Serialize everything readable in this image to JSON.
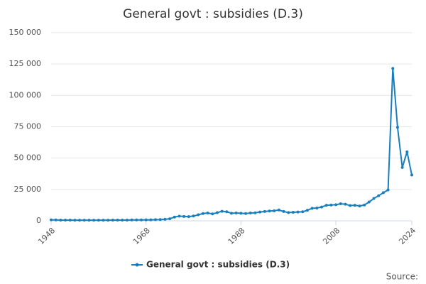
{
  "chart_data": {
    "type": "line",
    "title": "General govt : subsidies (D.3)",
    "source": "Source:",
    "x": [
      1948,
      1949,
      1950,
      1951,
      1952,
      1953,
      1954,
      1955,
      1956,
      1957,
      1958,
      1959,
      1960,
      1961,
      1962,
      1963,
      1964,
      1965,
      1966,
      1967,
      1968,
      1969,
      1970,
      1971,
      1972,
      1973,
      1974,
      1975,
      1976,
      1977,
      1978,
      1979,
      1980,
      1981,
      1982,
      1983,
      1984,
      1985,
      1986,
      1987,
      1988,
      1989,
      1990,
      1991,
      1992,
      1993,
      1994,
      1995,
      1996,
      1997,
      1998,
      1999,
      2000,
      2001,
      2002,
      2003,
      2004,
      2005,
      2006,
      2007,
      2008,
      2009,
      2010,
      2011,
      2012,
      2013,
      2014,
      2015,
      2016,
      2017,
      2018,
      2019,
      2020,
      2021,
      2022,
      2023,
      2024
    ],
    "series": [
      {
        "name": "General govt : subsidies (D.3)",
        "color": "#1a7fbd",
        "values": [
          800,
          700,
          600,
          600,
          600,
          500,
          500,
          500,
          500,
          500,
          500,
          500,
          500,
          600,
          600,
          600,
          600,
          700,
          700,
          700,
          800,
          800,
          900,
          1000,
          1200,
          1600,
          3000,
          3700,
          3500,
          3300,
          3800,
          4800,
          5800,
          6200,
          5500,
          6500,
          7600,
          7200,
          6000,
          6200,
          6000,
          5800,
          6200,
          6400,
          7000,
          7400,
          7800,
          8000,
          8600,
          7400,
          6600,
          6800,
          7000,
          7200,
          8400,
          10000,
          10200,
          11000,
          12400,
          12600,
          12800,
          13600,
          13200,
          12200,
          12400,
          11800,
          12600,
          15000,
          17800,
          20000,
          22400,
          24600,
          121500,
          74500,
          42500,
          55000,
          36500
        ]
      }
    ],
    "xlim": [
      1948,
      2024
    ],
    "xticks": [
      1948,
      1968,
      1988,
      2008,
      2024
    ],
    "ylim": [
      0,
      150000
    ],
    "yticks": [
      0,
      {
        "value": 25000,
        "label": "25 000"
      },
      {
        "value": 50000,
        "label": "50 000"
      },
      {
        "value": 75000,
        "label": "75 000"
      },
      {
        "value": 100000,
        "label": "100 000"
      },
      {
        "value": 125000,
        "label": "125 000"
      },
      {
        "value": 150000,
        "label": "150 000"
      }
    ],
    "grid": true
  }
}
